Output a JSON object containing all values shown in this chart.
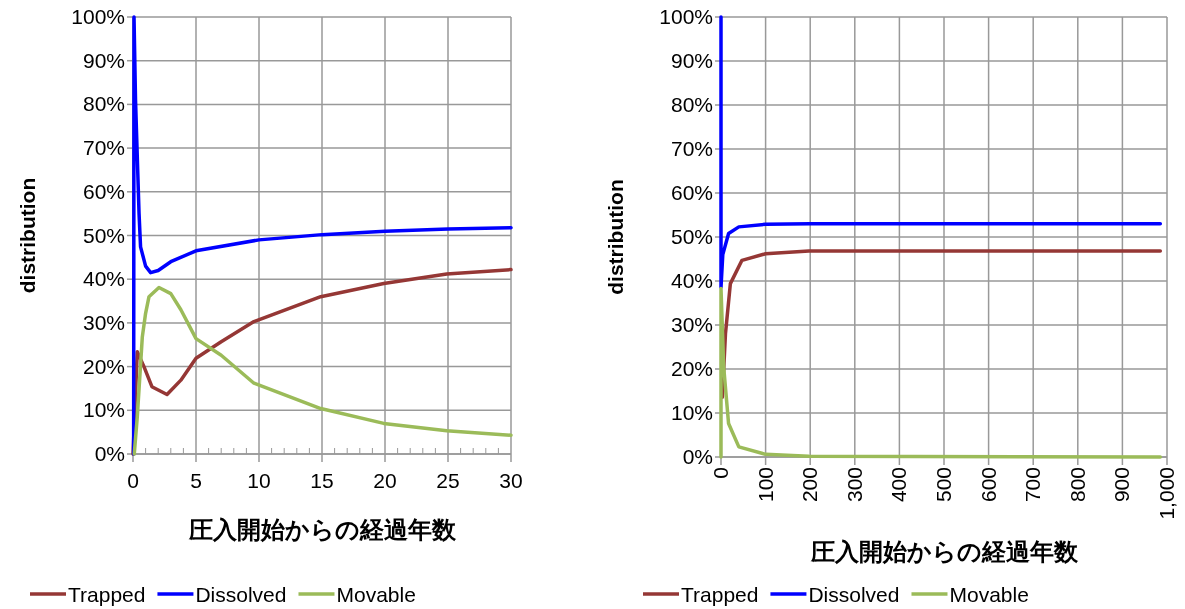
{
  "chart_data": [
    {
      "type": "line",
      "xlabel": "圧入開始からの経過年数",
      "ylabel": "distribution",
      "xlim": [
        0,
        30
      ],
      "xticks": [
        0,
        {
          "value": 1,
          "label": null
        },
        {
          "value": 2,
          "label": null
        },
        {
          "value": 3,
          "label": null
        },
        {
          "value": 4,
          "label": null
        },
        5,
        {
          "value": 6,
          "label": null
        },
        {
          "value": 7,
          "label": null
        },
        {
          "value": 8,
          "label": null
        },
        {
          "value": 9,
          "label": null
        },
        10,
        {
          "value": 11,
          "label": null
        },
        {
          "value": 12,
          "label": null
        },
        {
          "value": 13,
          "label": null
        },
        {
          "value": 14,
          "label": null
        },
        15,
        {
          "value": 16,
          "label": null
        },
        {
          "value": 17,
          "label": null
        },
        {
          "value": 18,
          "label": null
        },
        {
          "value": 19,
          "label": null
        },
        20,
        {
          "value": 21,
          "label": null
        },
        {
          "value": 22,
          "label": null
        },
        {
          "value": 23,
          "label": null
        },
        {
          "value": 24,
          "label": null
        },
        25,
        {
          "value": 26,
          "label": null
        },
        {
          "value": 27,
          "label": null
        },
        {
          "value": 28,
          "label": null
        },
        {
          "value": 29,
          "label": null
        },
        30
      ],
      "ylim": [
        0,
        100
      ],
      "yticks": [
        {
          "value": 0,
          "label": "0%"
        },
        {
          "value": 10,
          "label": "10%"
        },
        {
          "value": 20,
          "label": "20%"
        },
        {
          "value": 30,
          "label": "30%"
        },
        {
          "value": 40,
          "label": "40%"
        },
        {
          "value": 50,
          "label": "50%"
        },
        {
          "value": 60,
          "label": "60%"
        },
        {
          "value": 70,
          "label": "70%"
        },
        {
          "value": 80,
          "label": "80%"
        },
        {
          "value": 90,
          "label": "90%"
        },
        {
          "value": 100,
          "label": "100%"
        }
      ],
      "grid": true,
      "legend": "bottom",
      "line_style": "solid",
      "series": [
        {
          "name": "Trapped",
          "color": "#953735",
          "x": [
            0,
            0.34,
            0.87,
            1.5,
            2.7,
            3.8,
            5,
            7,
            9.6,
            14.9,
            19.9,
            24.9,
            30
          ],
          "values": [
            0,
            23.4,
            20,
            15.4,
            13.6,
            16.9,
            21.9,
            25.7,
            30.3,
            36,
            39,
            41.2,
            42.2
          ]
        },
        {
          "name": "Dissolved",
          "color": "#0000ff",
          "x": [
            0.05,
            0.08,
            0.2,
            0.48,
            0.6,
            1.0,
            1.4,
            2.0,
            3.0,
            5,
            10,
            15,
            20,
            25,
            30
          ],
          "values": [
            0,
            100,
            81,
            55,
            47.4,
            43,
            41.5,
            42,
            44,
            46.5,
            49,
            50.2,
            51,
            51.5,
            51.8
          ]
        },
        {
          "name": "Movable",
          "color": "#9bbb59",
          "x": [
            0.1,
            0.34,
            0.74,
            1.0,
            1.27,
            2.06,
            3.0,
            3.8,
            5,
            7,
            9.6,
            14.9,
            19.9,
            24.9,
            30
          ],
          "values": [
            0,
            8.5,
            26.8,
            32.2,
            36,
            38.1,
            36.7,
            33,
            26.4,
            22.6,
            16.2,
            10.4,
            7,
            5.3,
            4.3
          ]
        }
      ]
    },
    {
      "type": "line",
      "xlabel": "圧入開始からの経過年数",
      "ylabel": "distribution",
      "xlim": [
        0,
        1000
      ],
      "xticks": [
        0,
        100,
        200,
        300,
        400,
        500,
        600,
        700,
        800,
        900,
        {
          "value": 1000,
          "label": "1,000"
        }
      ],
      "ylim": [
        0,
        100
      ],
      "yticks": [
        {
          "value": 0,
          "label": "0%"
        },
        {
          "value": 10,
          "label": "10%"
        },
        {
          "value": 20,
          "label": "20%"
        },
        {
          "value": 30,
          "label": "30%"
        },
        {
          "value": 40,
          "label": "40%"
        },
        {
          "value": 50,
          "label": "50%"
        },
        {
          "value": 60,
          "label": "60%"
        },
        {
          "value": 70,
          "label": "70%"
        },
        {
          "value": 80,
          "label": "80%"
        },
        {
          "value": 90,
          "label": "90%"
        },
        {
          "value": 100,
          "label": "100%"
        }
      ],
      "grid": true,
      "legend": "bottom",
      "line_style": "solid",
      "series": [
        {
          "name": "Trapped",
          "color": "#953735",
          "x": [
            3,
            10,
            21,
            47,
            100,
            197,
            985
          ],
          "values": [
            13.6,
            28,
            39.4,
            44.7,
            46.2,
            46.8,
            46.8
          ]
        },
        {
          "name": "Dissolved",
          "color": "#0000ff",
          "x": [
            0,
            0,
            4,
            17,
            40,
            100,
            200,
            985
          ],
          "values": [
            100,
            38.6,
            46,
            50.8,
            52.3,
            52.9,
            53,
            53
          ]
        },
        {
          "name": "Movable",
          "color": "#9bbb59",
          "x": [
            0,
            0,
            6,
            17,
            40,
            100,
            197,
            985
          ],
          "values": [
            0,
            38.3,
            20.5,
            7.6,
            2.3,
            0.6,
            0.15,
            0
          ]
        }
      ]
    }
  ]
}
